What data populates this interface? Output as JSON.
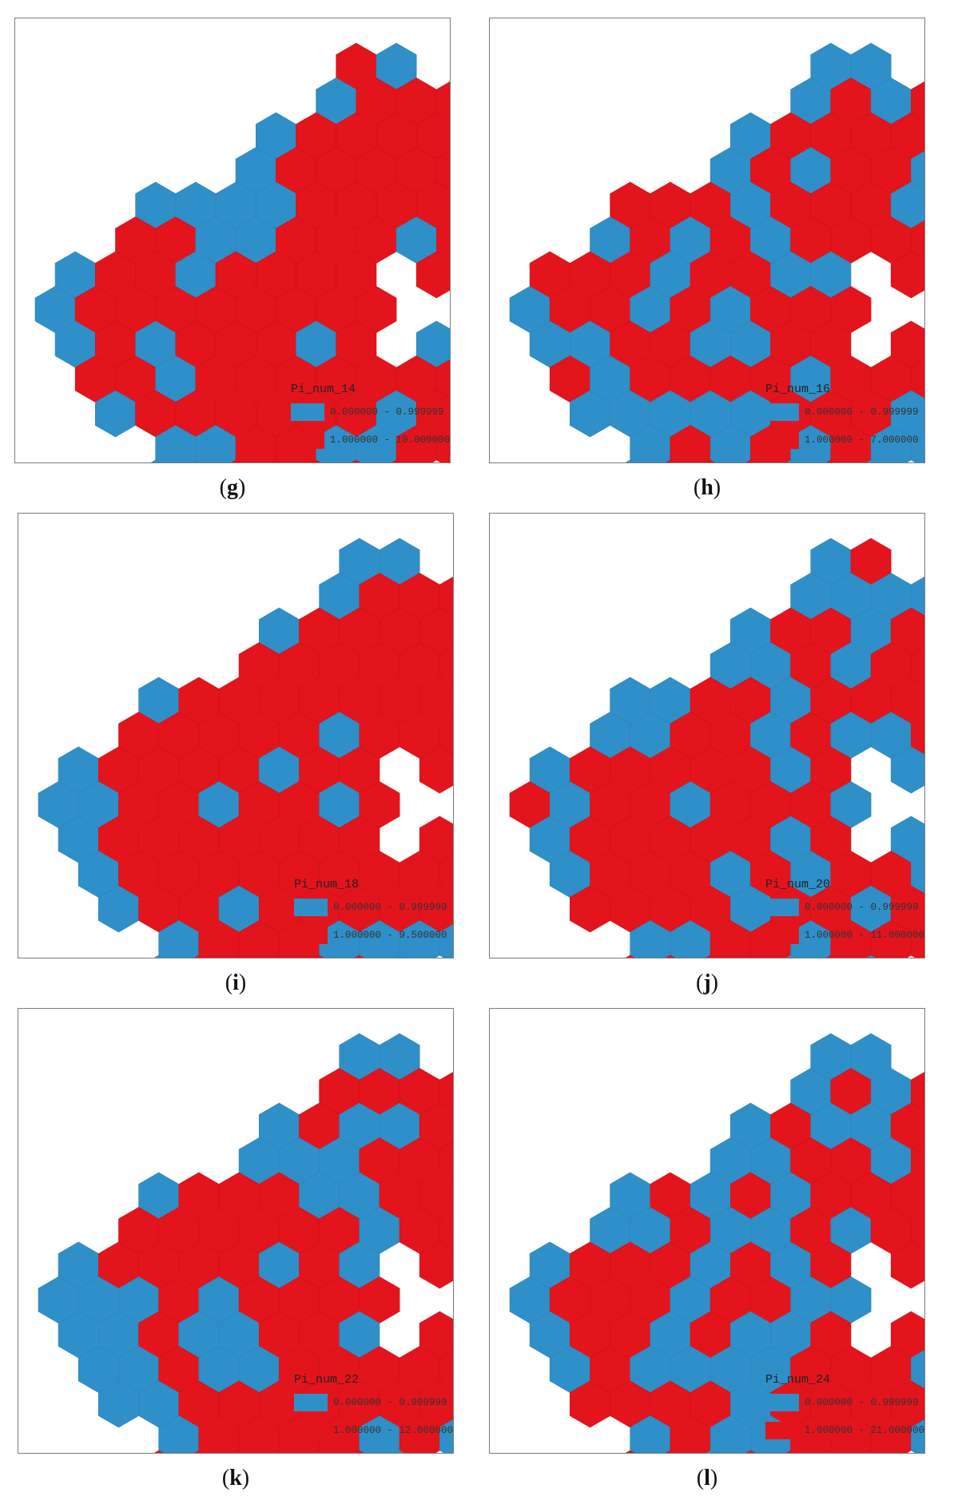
{
  "colors": {
    "low": "#2f8fc8",
    "high": "#e3141c"
  },
  "panels": [
    {
      "id": "g",
      "caption_open": "(",
      "caption_letter": "g",
      "caption_close": ")",
      "legend_title": "Pi_num_14",
      "legend_low": "0.000000 - 0.999999",
      "legend_high": "1.000000 - 10.000000",
      "seed": 14
    },
    {
      "id": "h",
      "caption_open": "(",
      "caption_letter": "h",
      "caption_close": ")",
      "legend_title": "Pi_num_16",
      "legend_low": "0.000000 - 0.999999",
      "legend_high": "1.000000 - 7.000000",
      "seed": 16
    },
    {
      "id": "i",
      "caption_open": "(",
      "caption_letter": "i",
      "caption_close": ")",
      "legend_title": "Pi_num_18",
      "legend_low": "0.000000 - 0.999999",
      "legend_high": "1.000000 - 9.500000",
      "seed": 18
    },
    {
      "id": "j",
      "caption_open": "(",
      "caption_letter": "j",
      "caption_close": ")",
      "legend_title": "Pi_num_20",
      "legend_low": "0.000000 - 0.999999",
      "legend_high": "1.000000 - 11.000000",
      "seed": 20
    },
    {
      "id": "k",
      "caption_open": "(",
      "caption_letter": "k",
      "caption_close": ")",
      "legend_title": "Pi_num_22",
      "legend_low": "0.000000 - 0.999999",
      "legend_high": "1.000000 - 12.000000",
      "seed": 22
    },
    {
      "id": "l",
      "caption_open": "(",
      "caption_letter": "l",
      "caption_close": ")",
      "legend_title": "Pi_num_24",
      "legend_low": "0.000000 - 0.999999",
      "legend_high": "1.000000 - 21.000000",
      "seed": 24
    }
  ]
}
